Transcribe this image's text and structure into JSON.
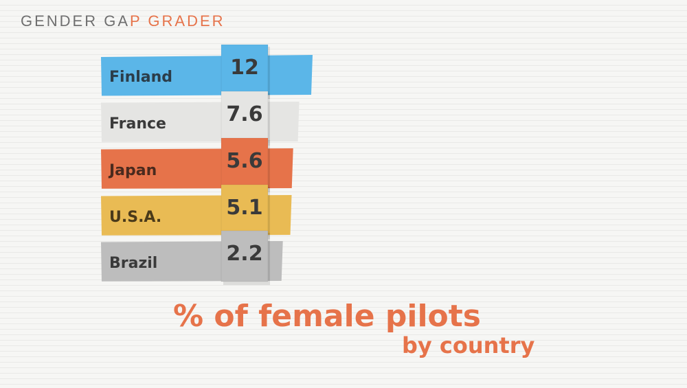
{
  "brand": {
    "part1": "GENDER GA",
    "part2": "P GRADER"
  },
  "chart_data": {
    "type": "bar",
    "title": "% of female pilots",
    "subtitle": "by country",
    "categories": [
      "Finland",
      "France",
      "Japan",
      "U.S.A.",
      "Brazil"
    ],
    "values": [
      12,
      7.6,
      5.6,
      5.1,
      2.2
    ],
    "value_labels": [
      "12",
      "7.6",
      "5.6",
      "5.1",
      "2.2"
    ],
    "colors": [
      "#5bb6e8",
      "#e5e5e3",
      "#e6734a",
      "#e9bb54",
      "#bdbdbd"
    ],
    "label_colors": [
      "#2b3d4a",
      "#3a3a3a",
      "#4a2a1e",
      "#4a3a1a",
      "#3a3a3a"
    ],
    "orientation": "horizontal",
    "xlim": [
      0,
      12
    ],
    "grid": false,
    "legend": "none"
  }
}
